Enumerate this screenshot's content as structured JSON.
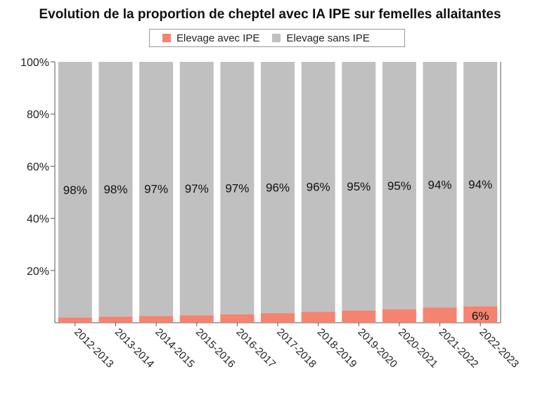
{
  "chart_data": {
    "type": "bar",
    "stacked": true,
    "title": "Evolution de la proportion de cheptel avec IA IPE sur femelles allaitantes",
    "categories": [
      "2012-2013",
      "2013-2014",
      "2014-2015",
      "2015-2016",
      "2016-2017",
      "2017-2018",
      "2018-2019",
      "2019-2020",
      "2020-2021",
      "2021-2022",
      "2022-2023"
    ],
    "series": [
      {
        "name": "Elevage avec IPE",
        "color": "#f4836f",
        "values": [
          2,
          2.3,
          2.6,
          2.9,
          3.3,
          3.7,
          4.2,
          4.7,
          5.2,
          5.8,
          6.3
        ],
        "labels": [
          "",
          "",
          "",
          "",
          "",
          "",
          "",
          "",
          "",
          "",
          "6%"
        ]
      },
      {
        "name": "Elevage sans IPE",
        "color": "#c0c0c0",
        "values": [
          98,
          97.7,
          97.4,
          97.1,
          96.7,
          96.3,
          95.8,
          95.3,
          94.8,
          94.2,
          93.7
        ],
        "labels": [
          "98%",
          "98%",
          "97%",
          "97%",
          "97%",
          "96%",
          "96%",
          "95%",
          "95%",
          "94%",
          "94%"
        ]
      }
    ],
    "ylim": [
      0,
      100
    ],
    "yticks": [
      "20%",
      "40%",
      "60%",
      "80%",
      "100%"
    ],
    "ytick_values": [
      20,
      40,
      60,
      80,
      100
    ],
    "legend_position": "top-center"
  }
}
